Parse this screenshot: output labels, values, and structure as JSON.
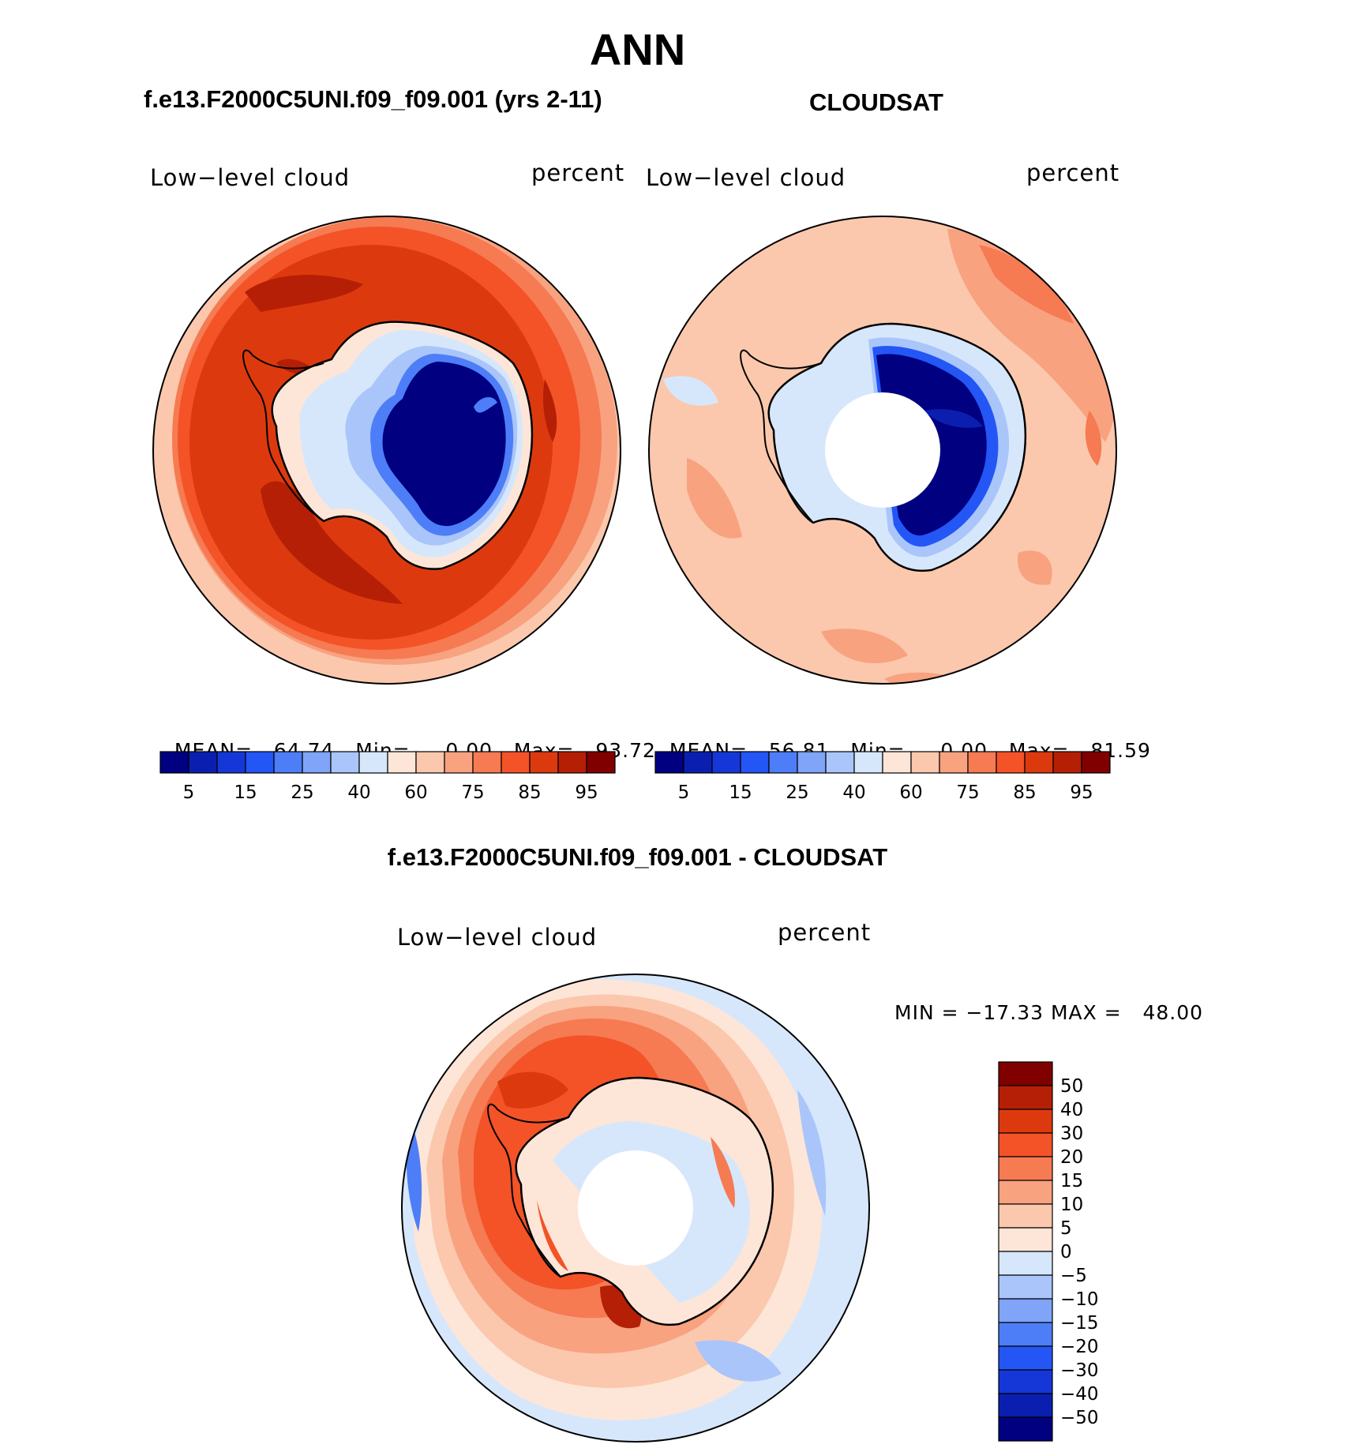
{
  "title": "ANN",
  "panels": [
    {
      "id": "model",
      "case_title": "f.e13.F2000C5UNI.f09_f09.001 (yrs 2-11)",
      "variable": "Low−level cloud",
      "units": "percent",
      "stats": {
        "mean_label": "MEAN=",
        "mean": "64.74",
        "min_label": "Min=",
        "min": "0.00",
        "max_label": "Max=",
        "max": "93.72"
      }
    },
    {
      "id": "obs",
      "case_title": "CLOUDSAT",
      "variable": "Low−level cloud",
      "units": "percent",
      "stats": {
        "mean_label": "MEAN=",
        "mean": "56.81",
        "min_label": "Min=",
        "min": "0.00",
        "max_label": "Max=",
        "max": "81.59"
      }
    },
    {
      "id": "diff",
      "case_title": "f.e13.F2000C5UNI.f09_f09.001 - CLOUDSAT",
      "variable": "Low−level cloud",
      "units": "percent",
      "stats_text": "MIN = −17.33 MAX =   48.00"
    }
  ],
  "colorbar_abs": {
    "colors": [
      "#000080",
      "#0a1fb0",
      "#1537d7",
      "#2356f5",
      "#4d7ef7",
      "#7fa4f8",
      "#aac5fa",
      "#d6e7fc",
      "#fde6d7",
      "#fbc8ad",
      "#f8a280",
      "#f67a52",
      "#f35327",
      "#dc3a0e",
      "#b51f05",
      "#800000"
    ],
    "tick_labels": [
      "5",
      "15",
      "25",
      "40",
      "60",
      "75",
      "85",
      "95"
    ]
  },
  "colorbar_diff": {
    "colors": [
      "#800000",
      "#b51f05",
      "#dc3a0e",
      "#f35327",
      "#f67a52",
      "#f8a280",
      "#fbc8ad",
      "#fde6d7",
      "#d6e7fc",
      "#aac5fa",
      "#7fa4f8",
      "#4d7ef7",
      "#2356f5",
      "#1537d7",
      "#0a1fb0",
      "#000080"
    ],
    "tick_labels": [
      "50",
      "40",
      "30",
      "20",
      "15",
      "10",
      "5",
      "0",
      "−5",
      "−10",
      "−15",
      "−20",
      "−30",
      "−40",
      "−50"
    ]
  }
}
